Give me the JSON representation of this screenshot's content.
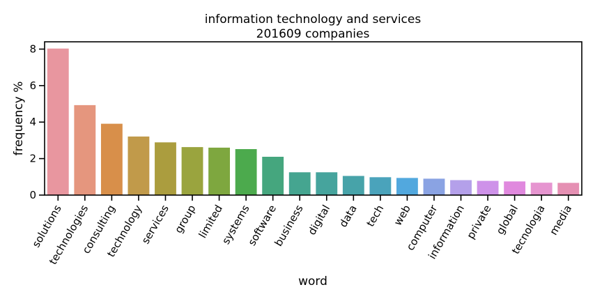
{
  "chart_data": {
    "type": "bar",
    "title": [
      "information technology and services",
      "201609 companies"
    ],
    "xlabel": "word",
    "ylabel": "frequency %",
    "ylim": [
      0,
      8.4
    ],
    "yticks": [
      0,
      2,
      4,
      6,
      8
    ],
    "grid": false,
    "categories": [
      "solutions",
      "technologies",
      "consulting",
      "technology",
      "services",
      "group",
      "limited",
      "systems",
      "software",
      "business",
      "digital",
      "data",
      "tech",
      "web",
      "computer",
      "information",
      "private",
      "global",
      "tecnologia",
      "media"
    ],
    "values": [
      8.03,
      4.93,
      3.91,
      3.21,
      2.89,
      2.63,
      2.6,
      2.52,
      2.1,
      1.25,
      1.25,
      1.05,
      0.98,
      0.94,
      0.9,
      0.82,
      0.78,
      0.75,
      0.68,
      0.67
    ],
    "colors": [
      "#e8969f",
      "#e5967e",
      "#d88f4a",
      "#c19a4a",
      "#ab9d3e",
      "#9aa43e",
      "#7ea73f",
      "#4caa4d",
      "#45a67e",
      "#45a590",
      "#46a49d",
      "#47a3a9",
      "#4aa3bb",
      "#52a8de",
      "#8aa3e3",
      "#b4a0ea",
      "#ce92e9",
      "#e089de",
      "#e695d0",
      "#e590b3"
    ]
  }
}
